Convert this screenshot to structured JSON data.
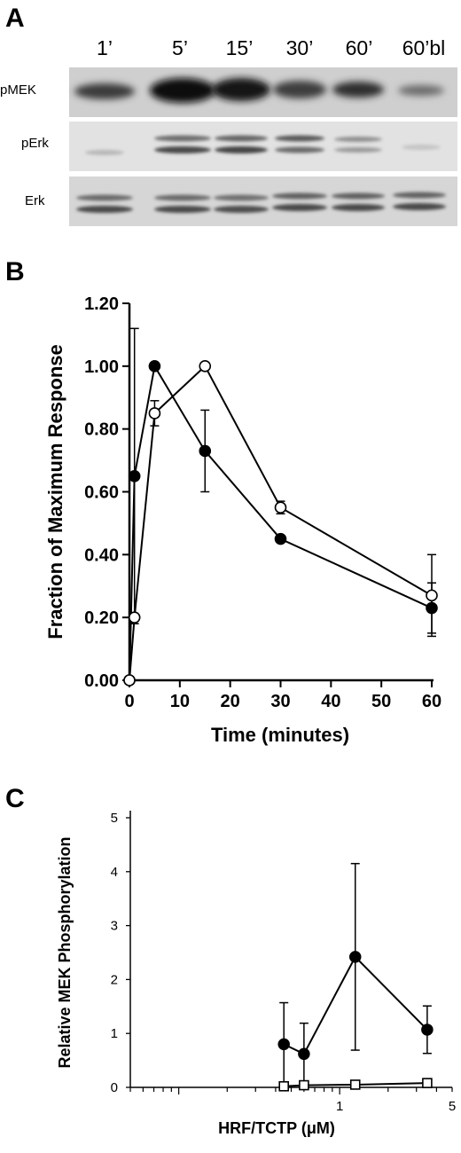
{
  "panels": {
    "a": {
      "letter": "A",
      "lanes": [
        "1’",
        "5’",
        "15’",
        "30’",
        "60’",
        "60’bl"
      ],
      "rows": [
        "pMEK",
        "pErk",
        "Erk"
      ]
    },
    "b": {
      "letter": "B"
    },
    "c": {
      "letter": "C"
    }
  },
  "colors": {
    "ink": "#000000",
    "blot_bg": "#d4d4d4",
    "band": "#2a2a2a"
  },
  "chart_data": [
    {
      "type": "line",
      "panel": "B",
      "xlabel": "Time (minutes)",
      "ylabel": "Fraction of Maximum Response",
      "xlim": [
        0,
        60
      ],
      "ylim": [
        0,
        1.2
      ],
      "x_ticks": [
        0,
        10,
        20,
        30,
        40,
        50,
        60
      ],
      "y_ticks": [
        "0.00",
        "0.20",
        "0.40",
        "0.60",
        "0.80",
        "1.00",
        "1.20"
      ],
      "grid": false,
      "series": [
        {
          "marker": "filled-circle",
          "x": [
            0,
            1,
            5,
            15,
            30,
            60
          ],
          "y": [
            0,
            0.65,
            1.0,
            0.73,
            0.45,
            0.23
          ],
          "err": [
            0,
            0.47,
            0,
            0.13,
            0,
            0.08
          ]
        },
        {
          "marker": "open-circle",
          "x": [
            0,
            1,
            5,
            15,
            30,
            60
          ],
          "y": [
            0,
            0.2,
            0.85,
            1.0,
            0.55,
            0.27
          ],
          "err": [
            0,
            0,
            0.04,
            0,
            0.02,
            0.13
          ]
        }
      ]
    },
    {
      "type": "line",
      "panel": "C",
      "xlabel": "HRF/TCTP (μM)",
      "ylabel": "Relative MEK Phosphorylation",
      "xscale": "log",
      "xlim": [
        0.05,
        5
      ],
      "ylim": [
        0,
        5
      ],
      "x_ticks": [
        {
          "value": 1,
          "label": "1"
        },
        {
          "value": 5,
          "label": "5"
        }
      ],
      "y_ticks": [
        "0",
        "1",
        "2",
        "3",
        "4",
        "5"
      ],
      "grid": false,
      "series": [
        {
          "marker": "filled-circle",
          "x": [
            0.45,
            0.6,
            1.25,
            3.5
          ],
          "y": [
            0.8,
            0.62,
            2.42,
            1.07
          ],
          "err": [
            0.77,
            0.57,
            1.73,
            0.44
          ]
        },
        {
          "marker": "open-square",
          "x": [
            0.45,
            0.6,
            1.25,
            3.5
          ],
          "y": [
            0.02,
            0.04,
            0.05,
            0.08
          ],
          "err": [
            0,
            0,
            0,
            0
          ]
        }
      ]
    }
  ]
}
